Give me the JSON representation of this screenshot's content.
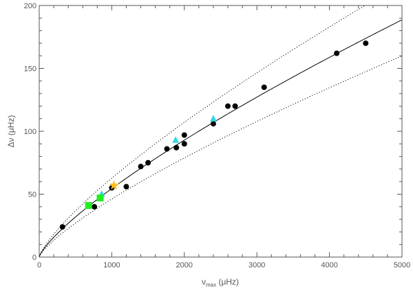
{
  "chart_data": {
    "type": "scatter",
    "title": "",
    "xlabel": {
      "symbol": "ν",
      "subscript": "max",
      "unit": "(μHz)"
    },
    "ylabel": {
      "symbol": "Δν",
      "unit": "(μHz)"
    },
    "xlim": [
      0,
      5000
    ],
    "ylim": [
      0,
      200
    ],
    "x_ticks": [
      0,
      1000,
      2000,
      3000,
      4000,
      5000
    ],
    "y_ticks": [
      0,
      50,
      100,
      150,
      200
    ],
    "x_tick_labels": [
      "0",
      "1000",
      "2000",
      "3000",
      "4000",
      "5000"
    ],
    "y_tick_labels": [
      "0",
      "50",
      "100",
      "150",
      "200"
    ],
    "grid": false,
    "legend": "none",
    "series": [
      {
        "marker": "circle",
        "color": "#000000",
        "points": [
          [
            320,
            24
          ],
          [
            760,
            40
          ],
          [
            1000,
            55
          ],
          [
            1200,
            56
          ],
          [
            1400,
            72
          ],
          [
            1500,
            75
          ],
          [
            1760,
            86
          ],
          [
            1890,
            87
          ],
          [
            2000,
            90
          ],
          [
            2000,
            97
          ],
          [
            2400,
            106
          ],
          [
            2600,
            120
          ],
          [
            2700,
            120
          ],
          [
            3100,
            135
          ],
          [
            4100,
            162
          ],
          [
            4500,
            170
          ]
        ]
      },
      {
        "marker": "triangle",
        "color": "#33d6e6",
        "points": [
          [
            860,
            50
          ],
          [
            1880,
            93
          ],
          [
            2400,
            110
          ]
        ]
      },
      {
        "marker": "square",
        "color": "#22ee22",
        "points": [
          [
            680,
            41
          ],
          [
            840,
            47
          ]
        ]
      },
      {
        "marker": "star",
        "color": "#ffbf1a",
        "points": [
          [
            1030,
            57
          ]
        ]
      }
    ],
    "curves": [
      {
        "style": "solid",
        "color": "#000000",
        "coefficient": 0.263,
        "exponent": 0.772
      },
      {
        "style": "dotted",
        "color": "#000000",
        "coefficient": 0.303,
        "exponent": 0.772
      },
      {
        "style": "dotted",
        "color": "#000000",
        "coefficient": 0.223,
        "exponent": 0.772
      }
    ]
  }
}
